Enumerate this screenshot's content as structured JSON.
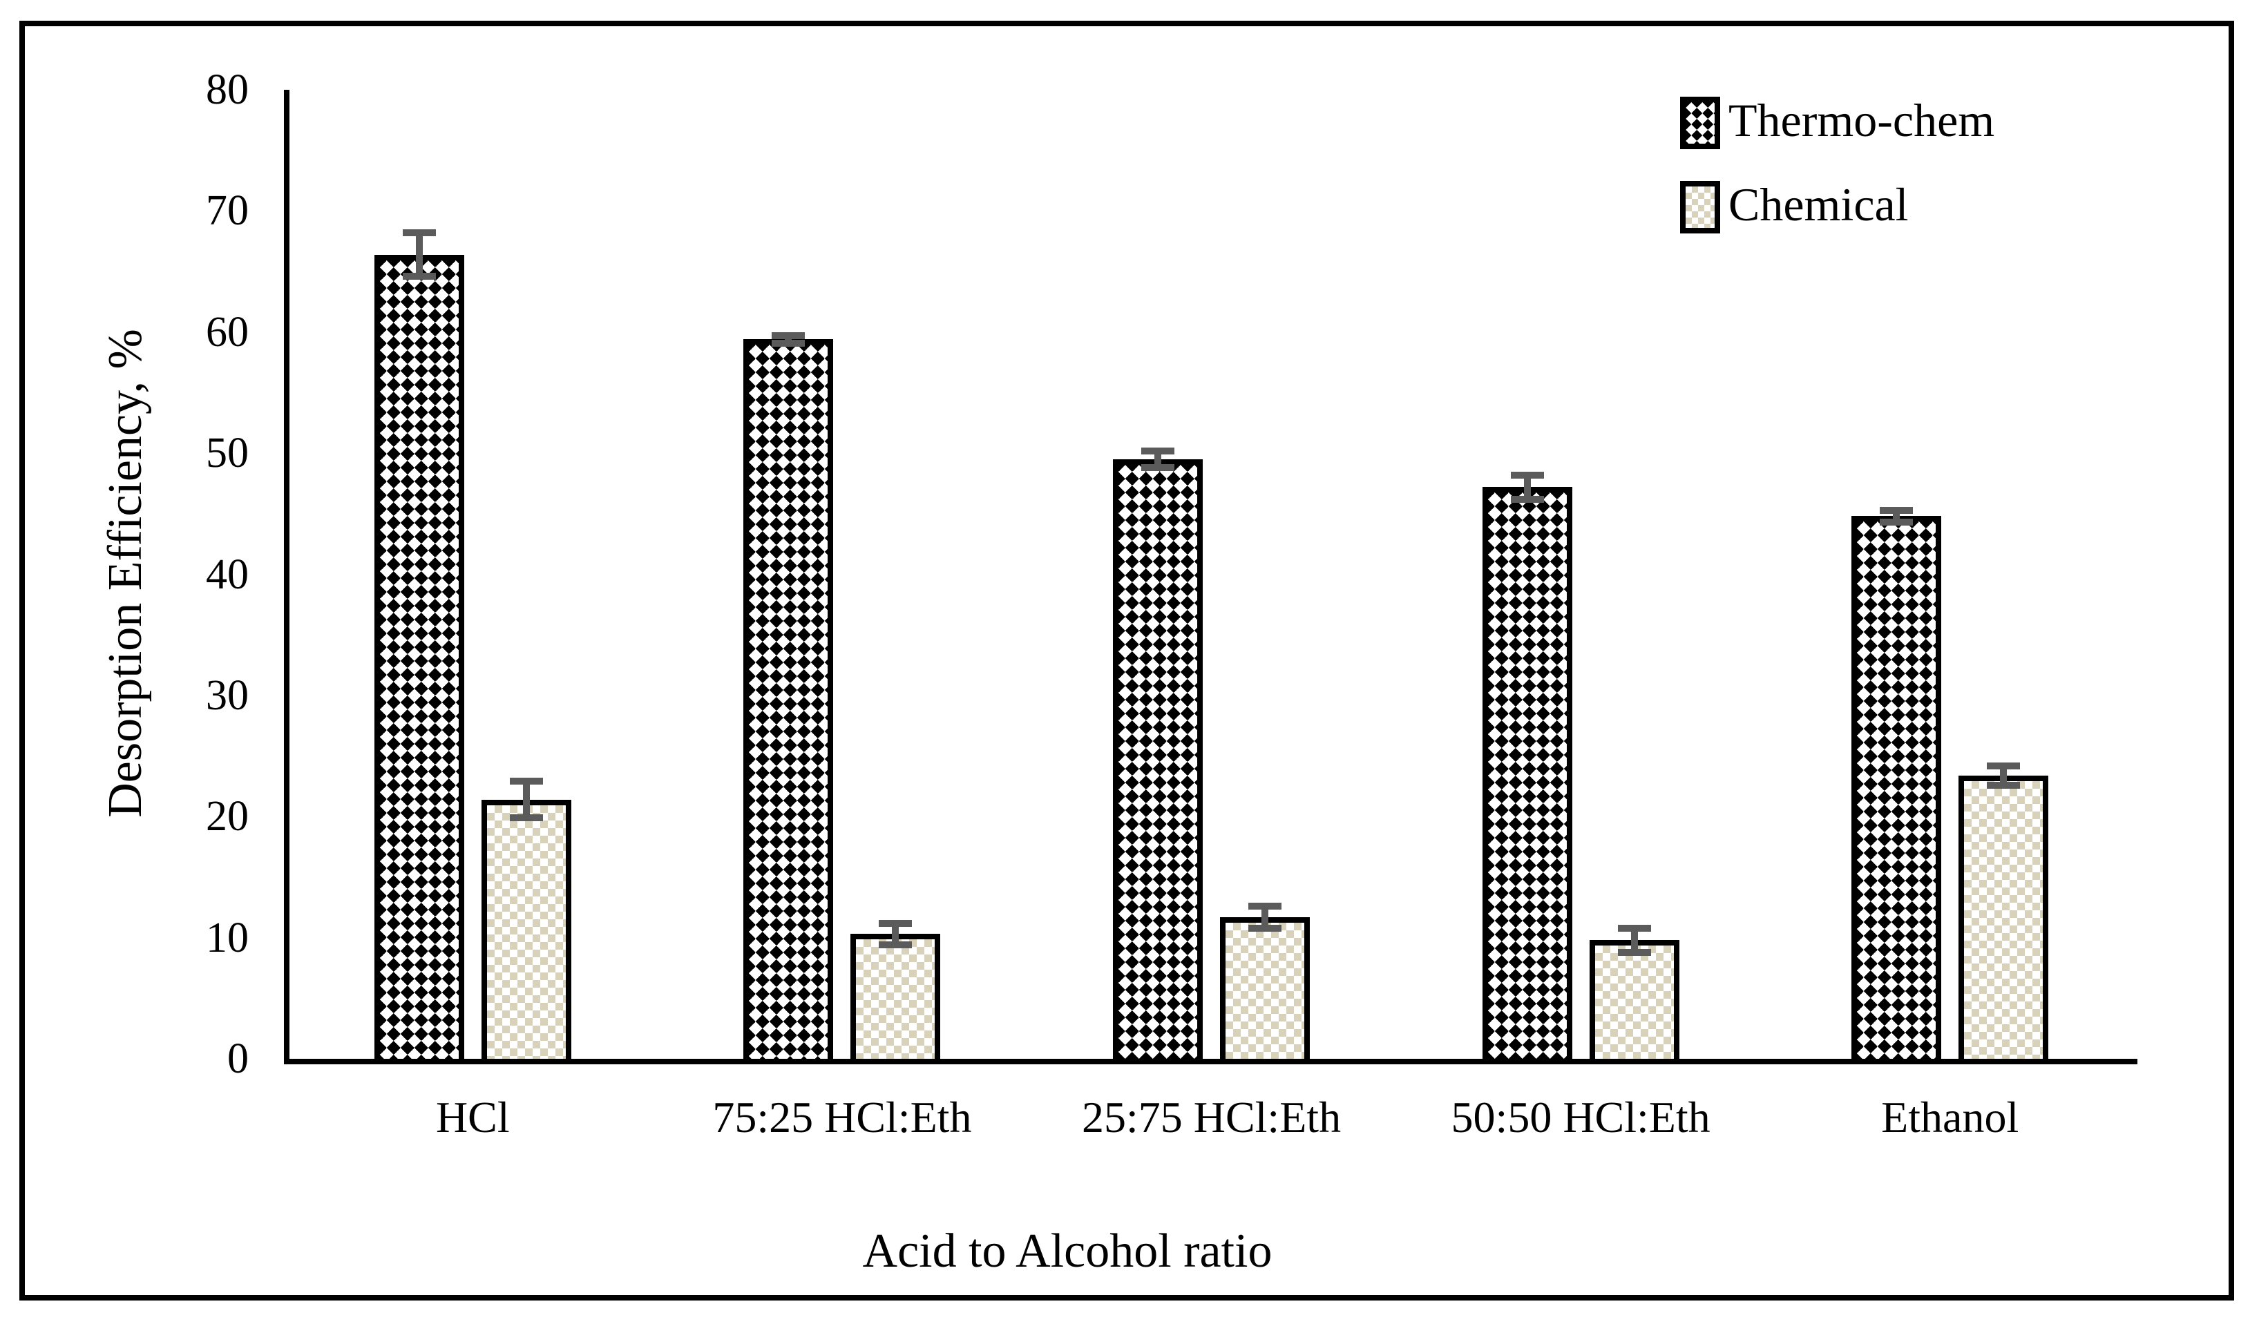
{
  "figure": {
    "background": "#ffffff",
    "frame_border_color": "#000000"
  },
  "chart_data": {
    "type": "bar",
    "title": "",
    "xlabel": "Acid to Alcohol ratio",
    "ylabel": "Desorption Efficiency, %",
    "ylim": [
      0,
      80
    ],
    "yticks": [
      0,
      10,
      20,
      30,
      40,
      50,
      60,
      70,
      80
    ],
    "grid": false,
    "legend_position": "top-right",
    "error_bars": true,
    "categories": [
      "HCl",
      "75:25 HCl:Eth",
      "25:75 HCl:Eth",
      "50:50 HCl:Eth",
      "Ethanol"
    ],
    "series": [
      {
        "name": "Thermo-chem",
        "pattern": "black-diamond-checker",
        "values": [
          66.4,
          59.4,
          49.5,
          47.2,
          44.8
        ],
        "errors": [
          1.8,
          0.3,
          0.7,
          1.0,
          0.5
        ]
      },
      {
        "name": "Chemical",
        "pattern": "beige-checkerboard",
        "values": [
          21.4,
          10.3,
          11.7,
          9.8,
          23.4
        ],
        "errors": [
          1.5,
          0.9,
          0.9,
          1.0,
          0.8
        ]
      }
    ],
    "colors": {
      "pattern_dark": "#000000",
      "pattern_beige": "#d8d2ba",
      "error_bar": "#5b5b5b",
      "axis": "#000000",
      "text": "#000000"
    }
  },
  "legend": {
    "items": [
      {
        "label": "Thermo-chem",
        "swatch": "black-diamond-checker"
      },
      {
        "label": "Chemical",
        "swatch": "beige-checkerboard"
      }
    ]
  }
}
